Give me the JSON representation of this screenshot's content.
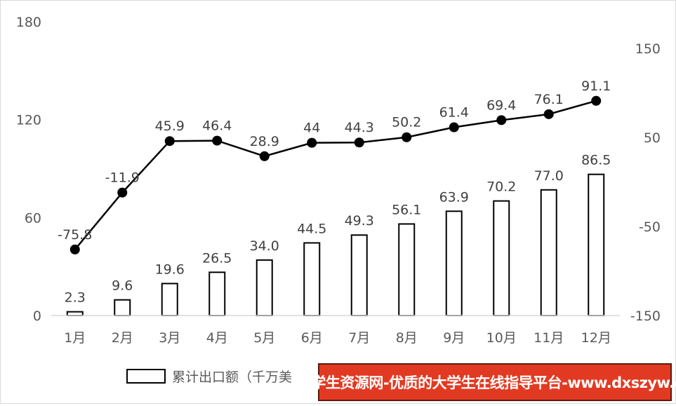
{
  "chart_data": {
    "type": "bar+line",
    "categories": [
      "1月",
      "2月",
      "3月",
      "4月",
      "5月",
      "6月",
      "7月",
      "8月",
      "9月",
      "10月",
      "11月",
      "12月"
    ],
    "series": [
      {
        "name": "累计出口额（千万美",
        "type": "bar",
        "axis": "left",
        "values": [
          2.3,
          9.6,
          19.6,
          26.5,
          34.0,
          44.5,
          49.3,
          56.1,
          63.9,
          70.2,
          77.0,
          86.5
        ],
        "labels": [
          "2.3",
          "9.6",
          "19.6",
          "26.5",
          "34.0",
          "44.5",
          "49.3",
          "56.1",
          "63.9",
          "70.2",
          "77.0",
          "86.5"
        ]
      },
      {
        "type": "line",
        "axis": "right",
        "values": [
          -75.8,
          -11.9,
          45.9,
          46.4,
          28.9,
          44,
          44.3,
          50.2,
          61.4,
          69.4,
          76.1,
          91.1
        ],
        "labels": [
          "-75.8",
          "-11.9",
          "45.9",
          "46.4",
          "28.9",
          "44",
          "44.3",
          "50.2",
          "61.4",
          "69.4",
          "76.1",
          "91.1"
        ]
      }
    ],
    "y_left": {
      "range": [
        0,
        180
      ],
      "ticks": [
        "0",
        "60",
        "120",
        "180"
      ]
    },
    "y_right": {
      "range": [
        -150,
        150
      ],
      "ticks": [
        "-150",
        "-50",
        "50",
        "150"
      ]
    },
    "grid": false,
    "legend": "bottom",
    "colors": {
      "bar_fill": "#ffffff",
      "bar_stroke": "#000000",
      "line": "#000000",
      "marker": "#000000"
    }
  },
  "watermark": "大学生资源网-优质的大学生在线指导平台-www.dxszyw.cn"
}
